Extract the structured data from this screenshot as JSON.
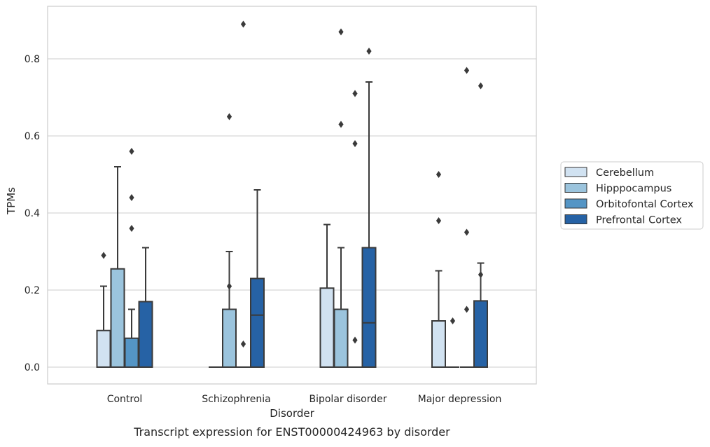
{
  "chart_data": {
    "type": "boxplot",
    "title": "Transcript expression for ENST00000424963 by disorder",
    "xlabel": "Disorder",
    "ylabel": "TPMs",
    "ylim": [
      -0.043,
      0.935
    ],
    "yticks": [
      "0.0",
      "0.2",
      "0.4",
      "0.6",
      "0.8"
    ],
    "grid": "horizontal",
    "legend_position": "right",
    "categories": [
      "Control",
      "Schizophrenia",
      "Bipolar disorder",
      "Major depression"
    ],
    "series": [
      {
        "name": "Cerebellum",
        "color": "#d1e2f1",
        "boxes": [
          {
            "min": 0.0,
            "q1": 0.0,
            "median": 0.0,
            "q3": 0.095,
            "max": 0.21,
            "outliers": [
              0.29
            ]
          },
          {
            "min": 0.0,
            "q1": 0.0,
            "median": 0.0,
            "q3": 0.0,
            "max": 0.0,
            "outliers": []
          },
          {
            "min": 0.0,
            "q1": 0.0,
            "median": 0.0,
            "q3": 0.205,
            "max": 0.37,
            "outliers": []
          },
          {
            "min": 0.0,
            "q1": 0.0,
            "median": 0.0,
            "q3": 0.12,
            "max": 0.25,
            "outliers": [
              0.5,
              0.38
            ]
          }
        ]
      },
      {
        "name": "Hipppocampus",
        "color": "#9bc4dd",
        "boxes": [
          {
            "min": 0.0,
            "q1": 0.0,
            "median": 0.0,
            "q3": 0.255,
            "max": 0.52,
            "outliers": []
          },
          {
            "min": 0.0,
            "q1": 0.0,
            "median": 0.0,
            "q3": 0.15,
            "max": 0.3,
            "outliers": [
              0.65,
              0.21
            ]
          },
          {
            "min": 0.0,
            "q1": 0.0,
            "median": 0.0,
            "q3": 0.15,
            "max": 0.31,
            "outliers": [
              0.87,
              0.63
            ]
          },
          {
            "min": 0.0,
            "q1": 0.0,
            "median": 0.0,
            "q3": 0.0,
            "max": 0.0,
            "outliers": [
              0.12
            ]
          }
        ]
      },
      {
        "name": "Orbitofontal Cortex",
        "color": "#5495c5",
        "boxes": [
          {
            "min": 0.0,
            "q1": 0.0,
            "median": 0.0,
            "q3": 0.075,
            "max": 0.15,
            "outliers": [
              0.56,
              0.44,
              0.36
            ]
          },
          {
            "min": 0.0,
            "q1": 0.0,
            "median": 0.0,
            "q3": 0.0,
            "max": 0.0,
            "outliers": [
              0.89,
              0.06
            ]
          },
          {
            "min": 0.0,
            "q1": 0.0,
            "median": 0.0,
            "q3": 0.0,
            "max": 0.0,
            "outliers": [
              0.71,
              0.58,
              0.07
            ]
          },
          {
            "min": 0.0,
            "q1": 0.0,
            "median": 0.0,
            "q3": 0.0,
            "max": 0.0,
            "outliers": [
              0.77,
              0.35,
              0.15
            ]
          }
        ]
      },
      {
        "name": "Prefrontal Cortex",
        "color": "#2662a5",
        "boxes": [
          {
            "min": 0.0,
            "q1": 0.0,
            "median": 0.0,
            "q3": 0.17,
            "max": 0.31,
            "outliers": []
          },
          {
            "min": 0.0,
            "q1": 0.0,
            "median": 0.135,
            "q3": 0.23,
            "max": 0.46,
            "outliers": []
          },
          {
            "min": 0.0,
            "q1": 0.0,
            "median": 0.115,
            "q3": 0.31,
            "max": 0.74,
            "outliers": [
              0.82
            ]
          },
          {
            "min": 0.0,
            "q1": 0.0,
            "median": 0.0,
            "q3": 0.172,
            "max": 0.27,
            "outliers": [
              0.73,
              0.24
            ]
          }
        ]
      }
    ]
  }
}
